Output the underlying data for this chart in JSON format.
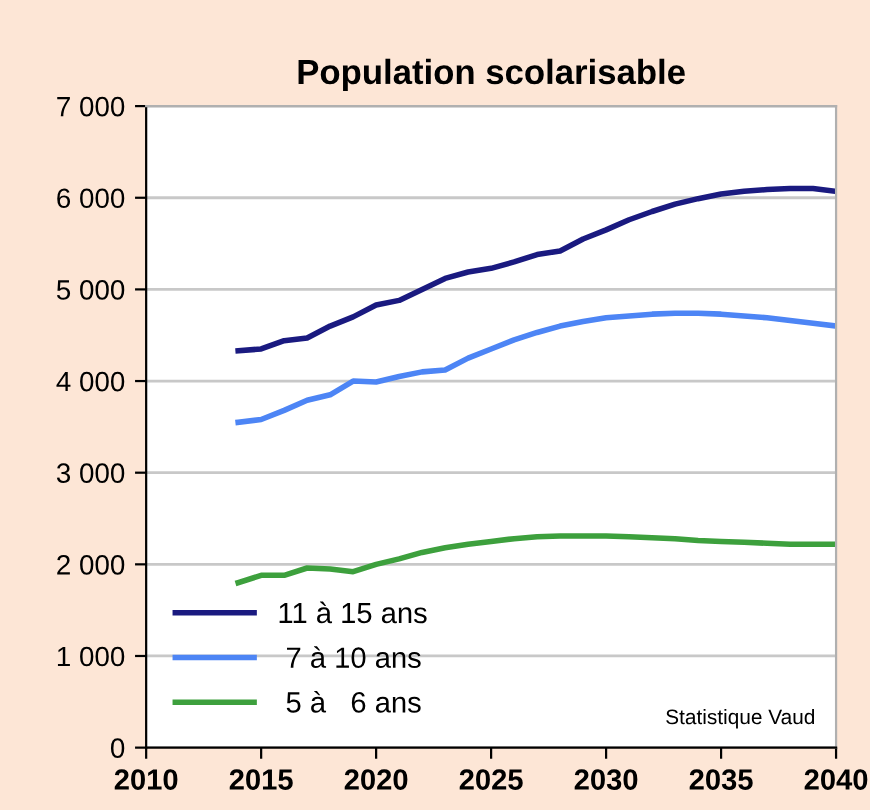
{
  "chart_data": {
    "type": "line",
    "title": "Population scolarisable",
    "x": [
      2014,
      2015,
      2016,
      2017,
      2018,
      2019,
      2020,
      2021,
      2022,
      2023,
      2024,
      2025,
      2026,
      2027,
      2028,
      2029,
      2030,
      2031,
      2032,
      2033,
      2034,
      2035,
      2036,
      2037,
      2038,
      2039,
      2040
    ],
    "series": [
      {
        "name": "11 à 15 ans",
        "color": "#1a1a80",
        "values": [
          4330,
          4350,
          4440,
          4470,
          4600,
          4700,
          4830,
          4880,
          5000,
          5120,
          5190,
          5230,
          5300,
          5380,
          5420,
          5550,
          5650,
          5760,
          5850,
          5930,
          5990,
          6040,
          6070,
          6090,
          6100,
          6100,
          6070
        ]
      },
      {
        "name": " 7 à 10 ans",
        "color": "#4d85f5",
        "values": [
          3550,
          3580,
          3680,
          3790,
          3850,
          4000,
          3990,
          4050,
          4100,
          4120,
          4250,
          4350,
          4450,
          4530,
          4600,
          4650,
          4690,
          4710,
          4730,
          4740,
          4740,
          4730,
          4710,
          4690,
          4660,
          4630,
          4600
        ]
      },
      {
        "name": " 5 à   6 ans",
        "color": "#3da03d",
        "values": [
          1800,
          1880,
          1880,
          1960,
          1950,
          1920,
          2000,
          2060,
          2130,
          2180,
          2220,
          2250,
          2280,
          2300,
          2310,
          2310,
          2310,
          2300,
          2290,
          2280,
          2260,
          2250,
          2240,
          2230,
          2220,
          2220,
          2220
        ]
      }
    ],
    "xlim": [
      2010,
      2040
    ],
    "xticks": [
      2010,
      2015,
      2020,
      2025,
      2030,
      2035,
      2040
    ],
    "ylim": [
      0,
      7000
    ],
    "yticks": [
      0,
      {
        "value": 1000,
        "label": "1 000"
      },
      {
        "value": 2000,
        "label": "2 000"
      },
      {
        "value": 3000,
        "label": "3 000"
      },
      {
        "value": 4000,
        "label": "4 000"
      },
      {
        "value": 5000,
        "label": "5 000"
      },
      {
        "value": 6000,
        "label": "6 000"
      },
      {
        "value": 7000,
        "label": "7 000"
      }
    ],
    "grid": "y",
    "legend": "bottom left",
    "marker": "none",
    "line_style": "solid",
    "annotations": [
      "Statistique Vaud"
    ]
  }
}
